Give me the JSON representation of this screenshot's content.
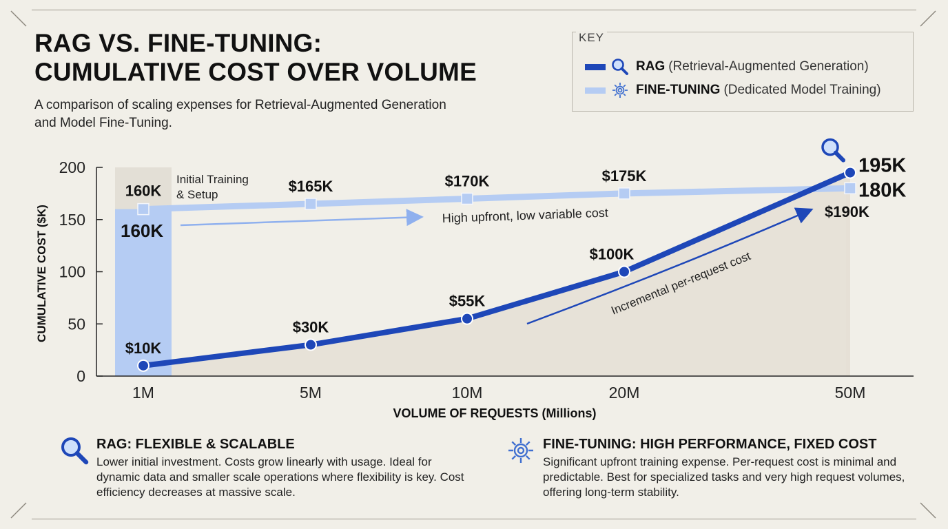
{
  "header": {
    "title_line1": "RAG VS. FINE-TUNING:",
    "title_line2": "CUMULATIVE COST OVER VOLUME",
    "subtitle": "A comparison of scaling expenses for Retrieval-Augmented Generation and Model Fine-Tuning."
  },
  "legend": {
    "title": "KEY",
    "items": [
      {
        "name": "RAG",
        "desc": "(Retrieval-Augmented Generation)",
        "color": "#1e47b8",
        "icon": "magnifier-icon"
      },
      {
        "name": "FINE-TUNING",
        "desc": "(Dedicated Model Training)",
        "color": "#b5ccf3",
        "icon": "gear-icon"
      }
    ]
  },
  "chart_data": {
    "type": "line",
    "categories": [
      "1M",
      "5M",
      "10M",
      "20M",
      "50M"
    ],
    "xlabel": "VOLUME OF REQUESTS (Millions)",
    "ylabel": "CUMULATIVE COST ($K)",
    "ylim": [
      0,
      200
    ],
    "yticks": [
      0,
      50,
      100,
      150,
      200
    ],
    "grid": false,
    "legend_position": "top-right",
    "series": [
      {
        "name": "RAG",
        "values": [
          10,
          30,
          55,
          100,
          195
        ],
        "labels": [
          "$10K",
          "$30K",
          "$55K",
          "$100K",
          "195K"
        ],
        "color": "#1e47b8"
      },
      {
        "name": "FINE-TUNING",
        "values": [
          160,
          165,
          170,
          175,
          180
        ],
        "labels": [
          "160K",
          "$165K",
          "$170K",
          "$175K",
          "180K"
        ],
        "color": "#b5ccf3"
      }
    ],
    "annotations": {
      "initial_training": "Initial Training & Setup",
      "initial_bar_value": 160,
      "initial_bar_label": "160K",
      "high_upfront": "High upfront, low variable cost",
      "incremental": "Incremental per-request cost",
      "extra_label": "$190K"
    },
    "colors": {
      "rag": "#1e47b8",
      "finetune": "#b5ccf3",
      "area": "#e6e0d6",
      "initial_bar": "#b5ccf3"
    }
  },
  "cards": {
    "rag": {
      "icon": "magnifier-icon",
      "title": "RAG: FLEXIBLE & SCALABLE",
      "body": "Lower initial investment. Costs grow linearly with usage. Ideal for dynamic data and smaller scale operations where flexibility is key. Cost efficiency decreases at massive scale."
    },
    "finetune": {
      "icon": "gear-icon",
      "title": "FINE-TUNING: HIGH PERFORMANCE, FIXED COST",
      "body": "Significant upfront training expense. Per-request cost is minimal and predictable. Best for specialized tasks and very high request volumes, offering long-term stability."
    }
  }
}
